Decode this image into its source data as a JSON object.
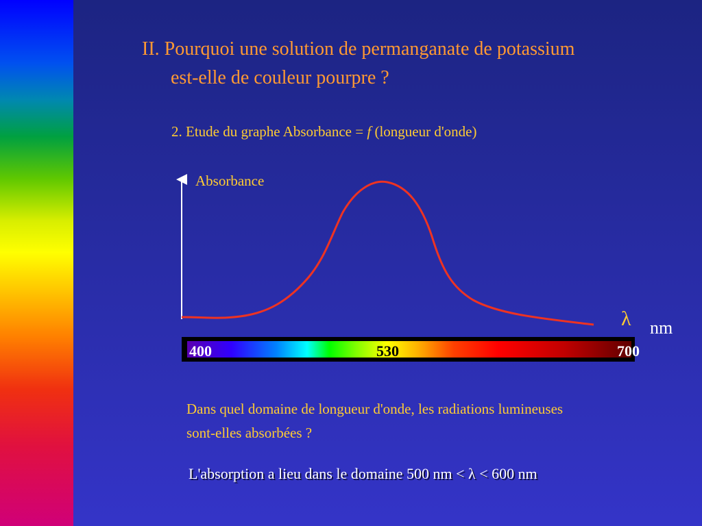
{
  "slide": {
    "title": {
      "line1": "II. Pourquoi une solution de permanganate de potassium",
      "line2": "est-elle de couleur pourpre ?"
    },
    "subtitle": {
      "before": "2. Etude du graphe Absorbance = ",
      "function": "f",
      "after": " (longueur d'onde)"
    },
    "graph": {
      "y_label": "Absorbance",
      "lambda": "λ",
      "unit": "nm",
      "scale_labels": [
        "400",
        "530",
        "700"
      ]
    },
    "question": {
      "line1": "Dans quel domaine de longueur d'onde, les radiations lumineuses",
      "line2": "sont-elles absorbées ?"
    },
    "answer": {
      "before": "L'absorption a lieu dans le domaine 500 nm < ",
      "lambda": "λ",
      "after": " < 600 nm"
    }
  }
}
